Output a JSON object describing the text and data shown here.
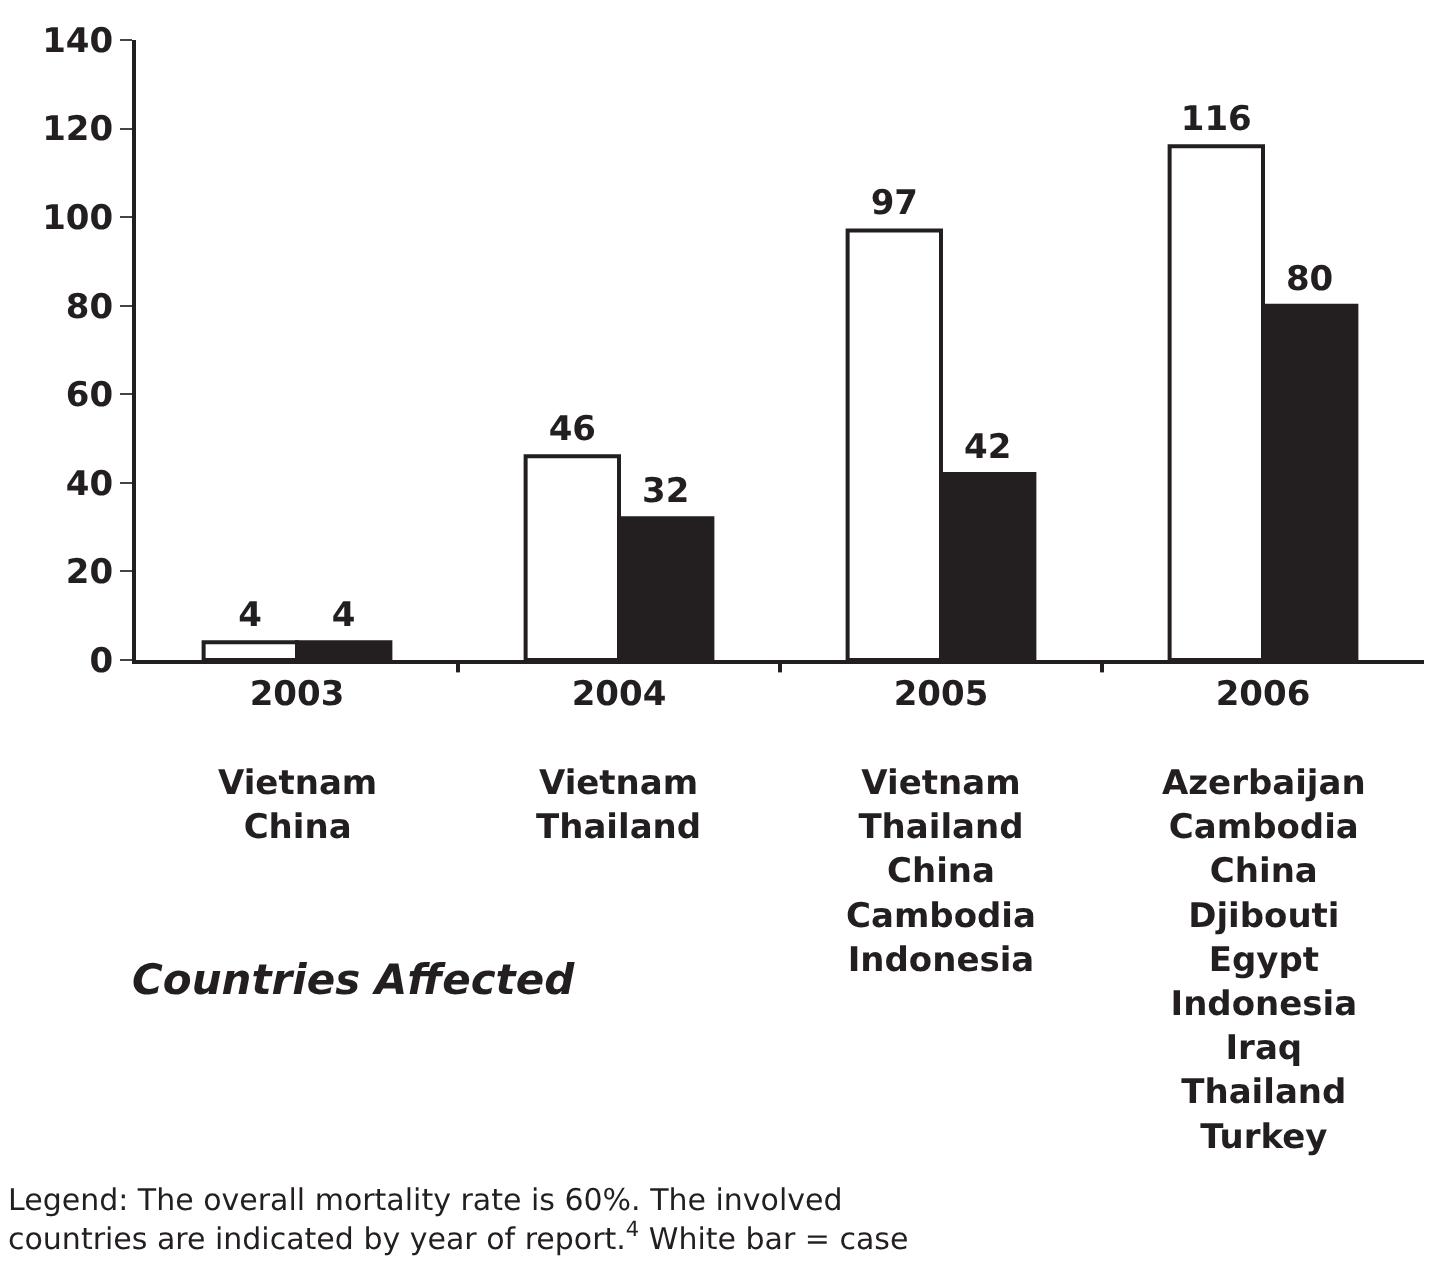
{
  "chart_data": {
    "type": "bar",
    "categories": [
      "2003",
      "2004",
      "2005",
      "2006"
    ],
    "series": [
      {
        "color": "#ffffff",
        "values": [
          4,
          46,
          97,
          116
        ]
      },
      {
        "color": "#231f20",
        "values": [
          4,
          32,
          42,
          80
        ]
      }
    ],
    "ylim": [
      0,
      140
    ],
    "yticks": [
      0,
      20,
      40,
      60,
      80,
      100,
      120,
      140
    ],
    "legend": false,
    "data_labels": true,
    "annotations": [
      "Vietnam\nChina",
      "Vietnam\nThailand",
      "Vietnam\nThailand\nChina\nCambodia\nIndonesia",
      "Azerbaijan\nCambodia\nChina\nDjibouti\nEgypt\nIndonesia\nIraq\nThailand\nTurkey",
      "Countries Affected",
      "Legend: The overall mortality rate is 60%. The involved\ncountries are indicated by year of report.$^{4}$ White bar = case"
    ]
  }
}
